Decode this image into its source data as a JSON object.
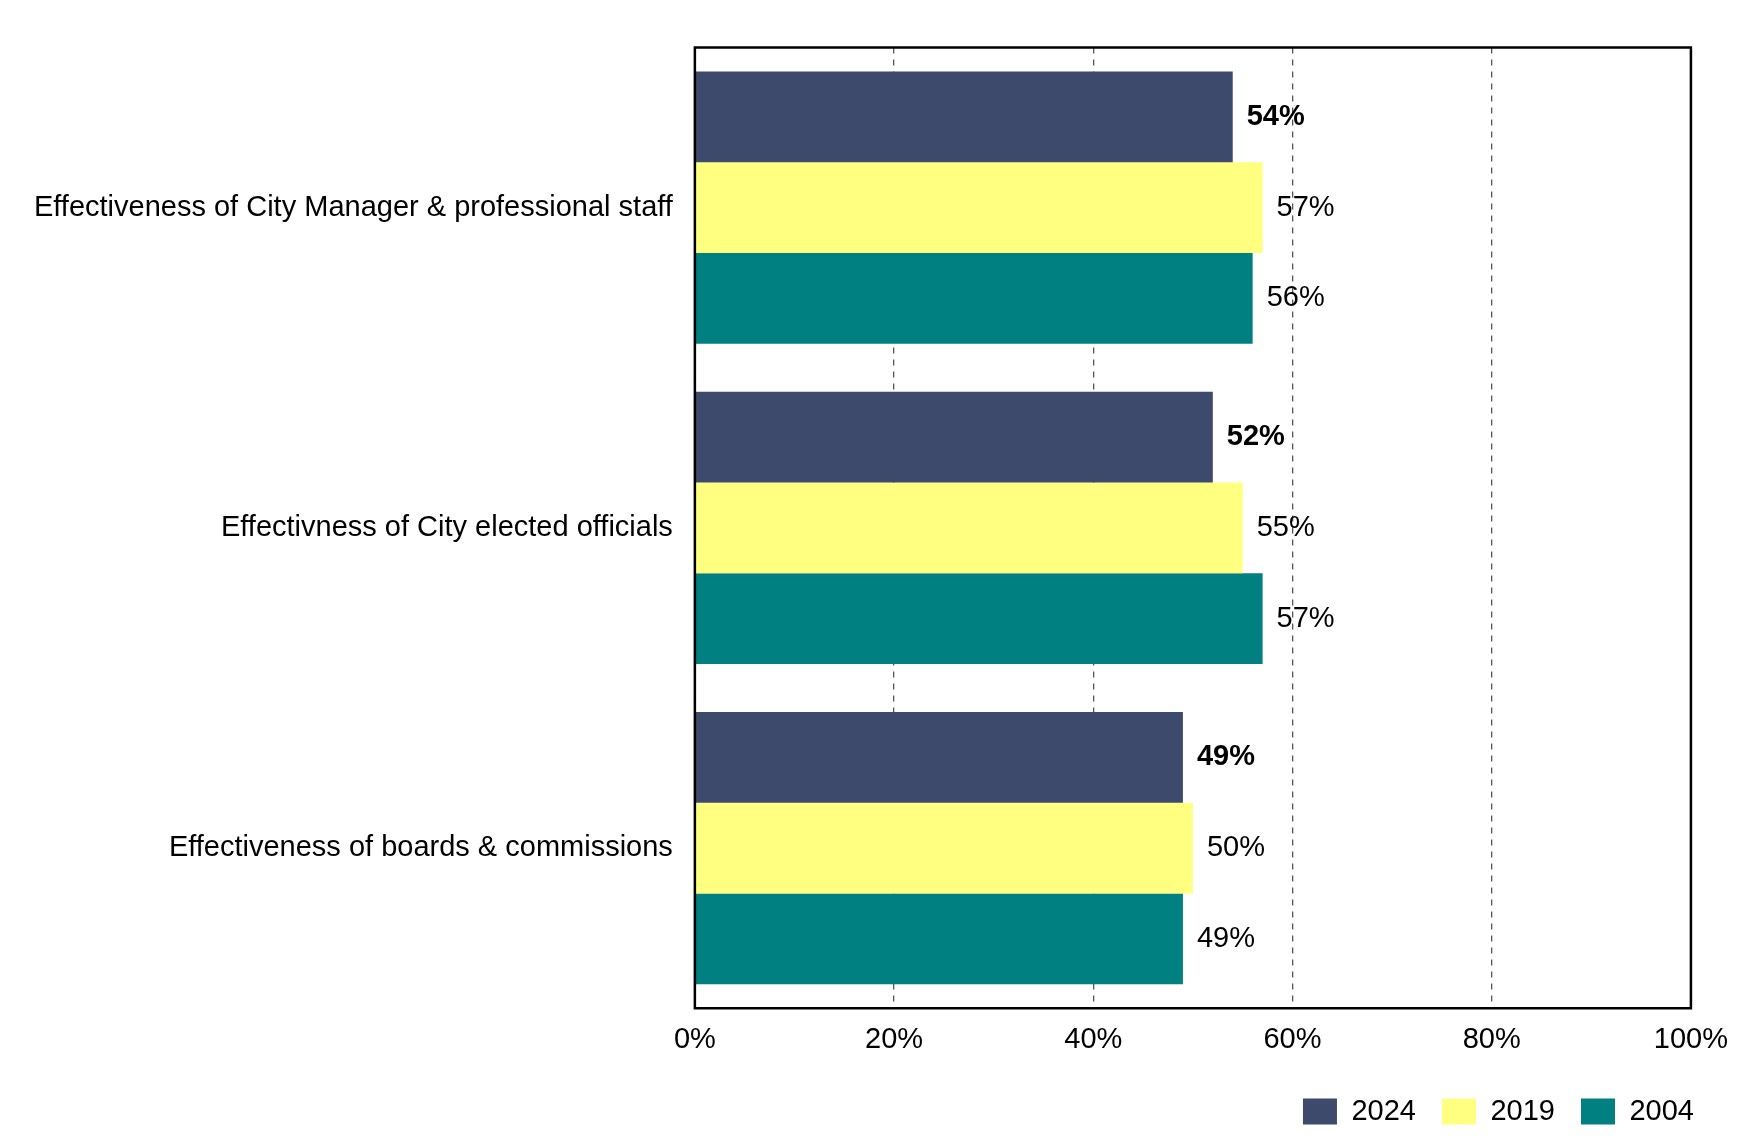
{
  "chart_data": {
    "type": "bar",
    "orientation": "horizontal",
    "categories": [
      "Effectiveness of City Manager & professional staff",
      "Effectivness of City elected officials",
      "Effectiveness of boards & commissions"
    ],
    "series": [
      {
        "name": "2024",
        "color": "#3d4a6b",
        "values": [
          54,
          52,
          49
        ],
        "value_labels": [
          "54%",
          "52%",
          "49%"
        ]
      },
      {
        "name": "2019",
        "color": "#ffff80",
        "values": [
          57,
          55,
          50
        ],
        "value_labels": [
          "57%",
          "55%",
          "50%"
        ]
      },
      {
        "name": "2004",
        "color": "#008080",
        "values": [
          56,
          57,
          49
        ],
        "value_labels": [
          "56%",
          "57%",
          "49%"
        ]
      }
    ],
    "xlim": [
      0,
      100
    ],
    "xticks": [
      {
        "value": 0,
        "label": "0%"
      },
      {
        "value": 20,
        "label": "20%"
      },
      {
        "value": 40,
        "label": "40%"
      },
      {
        "value": 60,
        "label": "60%"
      },
      {
        "value": 80,
        "label": "80%"
      },
      {
        "value": 100,
        "label": "100%"
      }
    ],
    "grid": "x",
    "legend": "bottom right"
  }
}
